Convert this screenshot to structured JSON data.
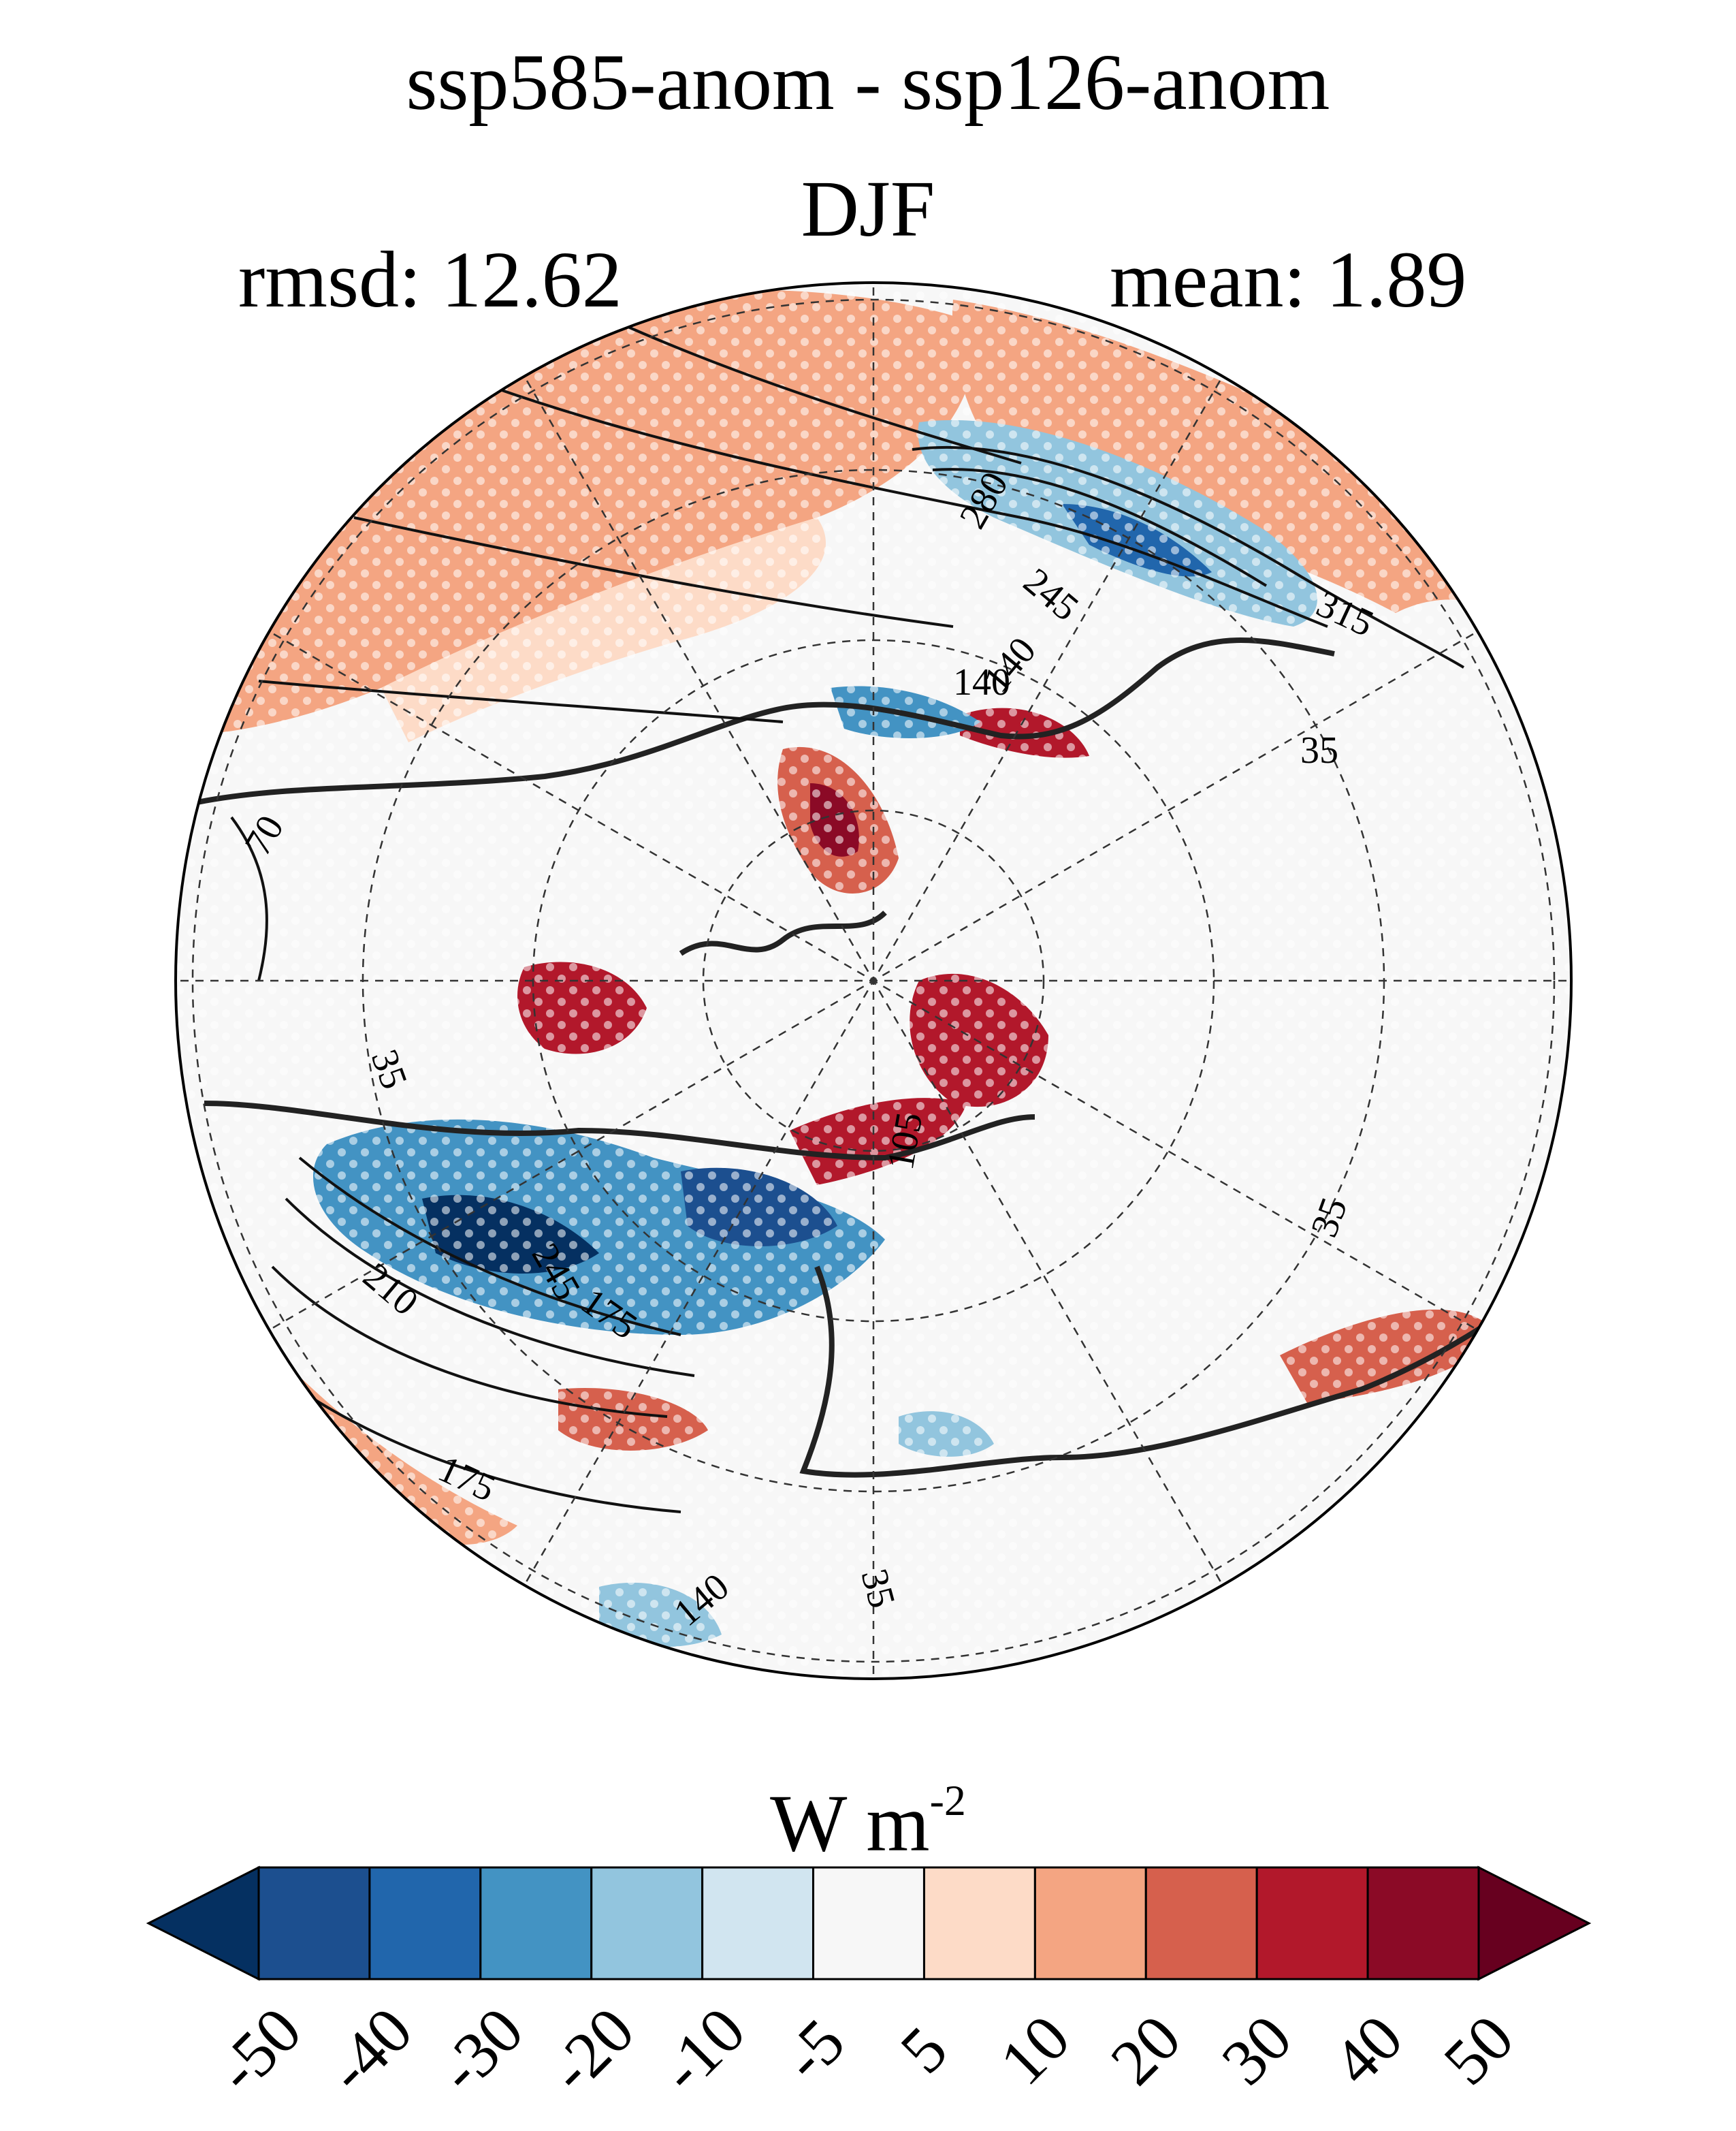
{
  "title": {
    "line1": "ssp585-anom - ssp126-anom",
    "line2": "DJF"
  },
  "stats": {
    "rmsd": "rmsd: 12.62",
    "mean": "mean: 1.89"
  },
  "map": {
    "projection": "north polar stereographic",
    "background_color": "#f7f7f7",
    "stippling": "white dots",
    "contour_labels": [
      "280",
      "245",
      "315",
      "140",
      "140",
      "35",
      "70",
      "35",
      "210",
      "245",
      "175",
      "175",
      "140",
      "35",
      "35",
      "105"
    ]
  },
  "colorbar": {
    "units": "W m",
    "units_exp": "-2",
    "ticks": [
      "-50",
      "-40",
      "-30",
      "-20",
      "-10",
      "-5",
      "5",
      "10",
      "20",
      "30",
      "40",
      "50"
    ],
    "colors": [
      "#053061",
      "#1c4f8f",
      "#2166ac",
      "#4393c3",
      "#92c5de",
      "#d1e5f0",
      "#f7f7f7",
      "#fddbc7",
      "#f4a582",
      "#d6604d",
      "#b2182b",
      "#8b0a26",
      "#67001f"
    ]
  }
}
